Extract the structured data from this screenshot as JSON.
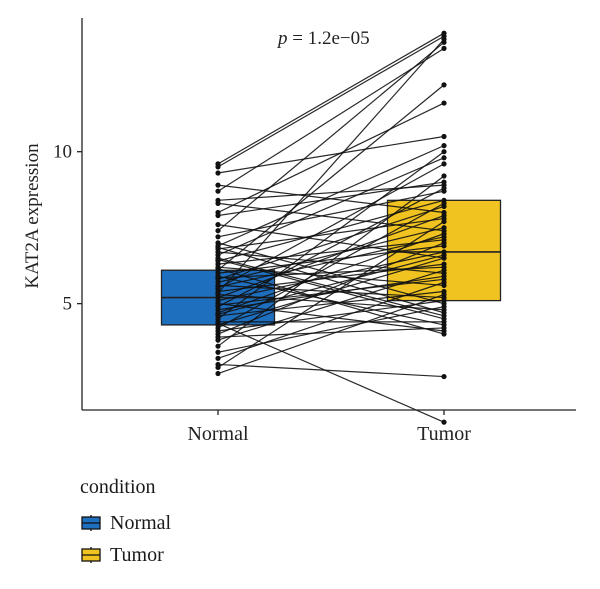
{
  "chart_data": {
    "type": "box",
    "title": "",
    "annotation": {
      "p_symbol": "p",
      "p_text": " = 1.2e−05"
    },
    "xlabel": "",
    "ylabel": "KAT2A expression",
    "categories": [
      "Normal",
      "Tumor"
    ],
    "ylim": [
      1.5,
      14.4
    ],
    "yticks": [
      5,
      10
    ],
    "grid": false,
    "legend": {
      "title": "condition",
      "position": "bottom-left",
      "entries": [
        "Normal",
        "Tumor"
      ]
    },
    "colors": {
      "Normal": "#1f6fbf",
      "Tumor": "#f0c320",
      "line": "#111111"
    },
    "boxes": [
      {
        "name": "Normal",
        "q1": 4.3,
        "median": 5.2,
        "q3": 6.1
      },
      {
        "name": "Tumor",
        "q1": 5.1,
        "median": 6.7,
        "q3": 8.4
      }
    ],
    "pairs": [
      [
        9.6,
        13.9
      ],
      [
        9.5,
        13.8
      ],
      [
        9.3,
        10.5
      ],
      [
        8.9,
        8.0
      ],
      [
        8.7,
        13.4
      ],
      [
        8.4,
        8.9
      ],
      [
        8.3,
        7.4
      ],
      [
        8.0,
        11.6
      ],
      [
        7.9,
        9.0
      ],
      [
        7.6,
        6.5
      ],
      [
        7.4,
        13.6
      ],
      [
        7.2,
        8.7
      ],
      [
        7.0,
        5.0
      ],
      [
        6.9,
        10.2
      ],
      [
        6.8,
        7.8
      ],
      [
        6.7,
        6.0
      ],
      [
        6.6,
        9.8
      ],
      [
        6.5,
        4.6
      ],
      [
        6.4,
        8.4
      ],
      [
        6.3,
        7.1
      ],
      [
        6.2,
        5.6
      ],
      [
        6.1,
        12.2
      ],
      [
        6.0,
        6.9
      ],
      [
        5.9,
        4.3
      ],
      [
        5.8,
        8.2
      ],
      [
        5.7,
        7.5
      ],
      [
        5.6,
        5.2
      ],
      [
        5.5,
        9.6
      ],
      [
        5.4,
        6.3
      ],
      [
        5.3,
        4.8
      ],
      [
        5.2,
        7.9
      ],
      [
        5.1,
        6.7
      ],
      [
        5.0,
        4.1
      ],
      [
        4.9,
        8.8
      ],
      [
        4.8,
        5.9
      ],
      [
        4.7,
        7.3
      ],
      [
        4.6,
        5.4
      ],
      [
        4.5,
        10.0
      ],
      [
        4.4,
        4.4
      ],
      [
        4.3,
        6.5
      ],
      [
        4.2,
        8.3
      ],
      [
        4.1,
        5.1
      ],
      [
        4.0,
        7.0
      ],
      [
        3.9,
        4.2
      ],
      [
        3.8,
        6.1
      ],
      [
        3.6,
        9.2
      ],
      [
        3.4,
        4.9
      ],
      [
        3.2,
        5.7
      ],
      [
        3.0,
        2.6
      ],
      [
        2.9,
        7.7
      ],
      [
        2.7,
        5.3
      ],
      [
        4.35,
        1.1
      ],
      [
        6.15,
        4.0
      ],
      [
        5.35,
        13.7
      ],
      [
        5.85,
        6.2
      ],
      [
        6.45,
        4.5
      ],
      [
        4.95,
        5.8
      ],
      [
        5.55,
        7.2
      ],
      [
        6.85,
        4.7
      ],
      [
        4.65,
        6.6
      ]
    ]
  }
}
